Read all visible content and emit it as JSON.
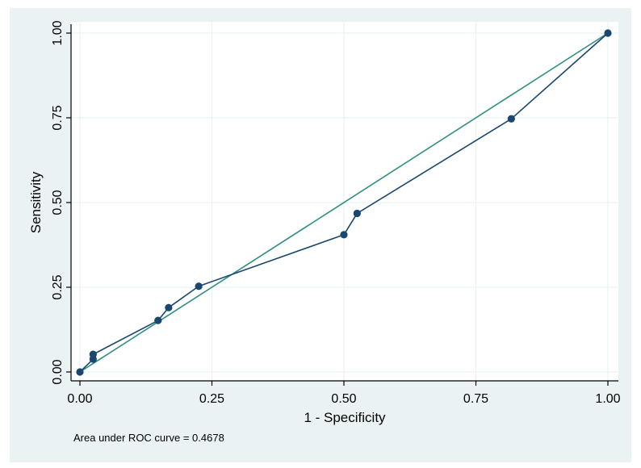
{
  "chart_data": {
    "type": "line",
    "title": "",
    "xlabel": "1 - Specificity",
    "ylabel": "Sensitivity",
    "xlim": [
      0,
      1
    ],
    "ylim": [
      0,
      1
    ],
    "x_ticks": [
      0,
      0.25,
      0.5,
      0.75,
      1
    ],
    "y_ticks": [
      0,
      0.25,
      0.5,
      0.75,
      1
    ],
    "x_tick_labels": [
      "0.00",
      "0.25",
      "0.50",
      "0.75",
      "1.00"
    ],
    "y_tick_labels": [
      "0.00",
      "0.25",
      "0.50",
      "0.75",
      "1.00"
    ],
    "grid": true,
    "series": [
      {
        "x": [
          0,
          0.025,
          0.025,
          0.148,
          0.168,
          0.225,
          0.5,
          0.525,
          0.817,
          1
        ],
        "y": [
          0,
          0.038,
          0.052,
          0.152,
          0.19,
          0.253,
          0.405,
          0.468,
          0.747,
          1
        ],
        "markers": true,
        "color": "#1a476f"
      },
      {
        "x": [
          0,
          1
        ],
        "y": [
          0,
          1
        ],
        "markers": false,
        "color": "#2f8f7f"
      }
    ],
    "annotation": "Area under ROC curve = 0.4678"
  },
  "colors": {
    "outer_background": "#eaf2f3",
    "plot_background": "#ffffff",
    "grid": "#eaf2f3",
    "axis": "#000000"
  }
}
